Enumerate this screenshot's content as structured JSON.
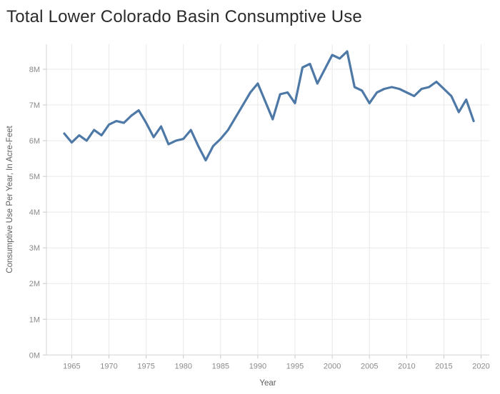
{
  "title": "Total Lower Colorado Basin Consumptive Use",
  "colors": {
    "line": "#4e79a7",
    "grid": "#e9e9e9",
    "axis": "#d4d4d4",
    "tick": "#c9c9c9",
    "tick_label": "#8a8a8a",
    "axis_title": "#5f5f5f",
    "title": "#2b2b2b",
    "background": "#ffffff"
  },
  "chart_data": {
    "type": "line",
    "title": "Total Lower Colorado Basin Consumptive Use",
    "xlabel": "Year",
    "ylabel": "Consumptive Use Per Year, In Acre-Feet",
    "xlim": [
      1961.6,
      2021.1
    ],
    "ylim": [
      0,
      8.7
    ],
    "grid": true,
    "legend": false,
    "x_ticks": [
      1965,
      1970,
      1975,
      1980,
      1985,
      1990,
      1995,
      2000,
      2005,
      2010,
      2015,
      2020
    ],
    "y_ticks": [
      {
        "value": 0,
        "label": "0M"
      },
      {
        "value": 1,
        "label": "1M"
      },
      {
        "value": 2,
        "label": "2M"
      },
      {
        "value": 3,
        "label": "3M"
      },
      {
        "value": 4,
        "label": "4M"
      },
      {
        "value": 5,
        "label": "5M"
      },
      {
        "value": 6,
        "label": "6M"
      },
      {
        "value": 7,
        "label": "7M"
      },
      {
        "value": 8,
        "label": "8M"
      }
    ],
    "series": [
      {
        "name": "Total Lower Colorado Basin Consumptive Use",
        "unit": "million acre-feet per year",
        "x": [
          1964,
          1965,
          1966,
          1967,
          1968,
          1969,
          1970,
          1971,
          1972,
          1973,
          1974,
          1975,
          1976,
          1977,
          1978,
          1979,
          1980,
          1981,
          1982,
          1983,
          1984,
          1985,
          1986,
          1987,
          1988,
          1989,
          1990,
          1991,
          1992,
          1993,
          1994,
          1995,
          1996,
          1997,
          1998,
          1999,
          2000,
          2001,
          2002,
          2003,
          2004,
          2005,
          2006,
          2007,
          2008,
          2009,
          2010,
          2011,
          2012,
          2013,
          2014,
          2015,
          2016,
          2017,
          2018,
          2019
        ],
        "values": [
          6.2,
          5.95,
          6.15,
          6.0,
          6.3,
          6.15,
          6.45,
          6.55,
          6.5,
          6.7,
          6.85,
          6.5,
          6.1,
          6.4,
          5.9,
          6.0,
          6.05,
          6.3,
          5.85,
          5.45,
          5.85,
          6.05,
          6.3,
          6.65,
          7.0,
          7.35,
          7.6,
          7.1,
          6.6,
          7.3,
          7.35,
          7.05,
          8.05,
          8.15,
          7.6,
          8.0,
          8.4,
          8.3,
          8.5,
          7.5,
          7.4,
          7.05,
          7.35,
          7.45,
          7.5,
          7.45,
          7.35,
          7.25,
          7.45,
          7.5,
          7.65,
          7.45,
          7.25,
          6.8,
          7.15,
          6.55
        ]
      }
    ]
  }
}
